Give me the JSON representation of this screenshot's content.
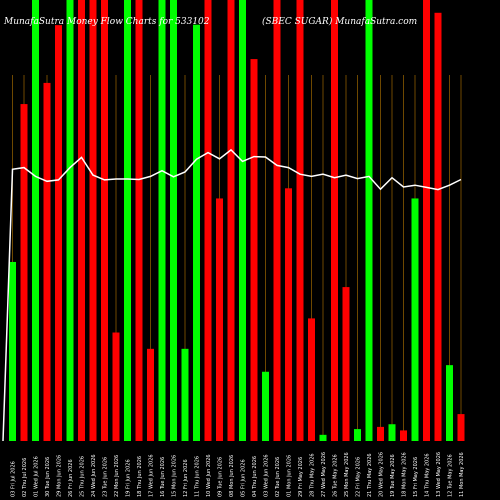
{
  "header": {
    "left": "MunafaSutra  Money Flow  Charts for 533102",
    "right": "(SBEC SUGAR)  MunafaSutra.com"
  },
  "colors": {
    "background": "#000000",
    "up": "#00ff00",
    "down": "#ff0000",
    "line": "#ffffff",
    "grid": "#8b5a00"
  },
  "chart_data": {
    "type": "bar",
    "title": "MunafaSutra  Money Flow  Charts for 533102",
    "subtitle": "(SBEC SUGAR)  MunafaSutra.com",
    "grid": "vertical",
    "ylim": [
      0,
      100
    ],
    "categories": [
      "03 Fri Jul 2026",
      "02 Thu Jul 2026",
      "01 Wed Jul 2026",
      "30 Tue Jun 2026",
      "29 Mon Jun 2026",
      "26 Fri Jun 2026",
      "25 Thu Jun 2026",
      "24 Wed Jun 2026",
      "23 Tue Jun 2026",
      "22 Mon Jun 2026",
      "19 Fri Jun 2026",
      "18 Thu Jun 2026",
      "17 Wed Jun 2026",
      "16 Tue Jun 2026",
      "15 Mon Jun 2026",
      "12 Fri Jun 2026",
      "11 Thu Jun 2026",
      "10 Wed Jun 2026",
      "09 Tue Jun 2026",
      "08 Mon Jun 2026",
      "05 Fri Jun 2026",
      "04 Thu Jun 2026",
      "03 Wed Jun 2026",
      "02 Tue Jun 2026",
      "01 Mon Jun 2026",
      "29 Fri May 2026",
      "28 Thu May 2026",
      "27 Wed May 2026",
      "26 Tue May 2026",
      "25 Mon May 2026",
      "22 Fri May 2026",
      "21 Thu May 2026",
      "20 Wed May 2026",
      "19 Tue May 2026",
      "18 Mon May 2026",
      "15 Fri May 2026",
      "14 Thu May 2026",
      "13 Wed May 2026",
      "12 Tue May 2026",
      "11 Mon May 2026"
    ],
    "series": [
      {
        "values": [
          40.6,
          76.4,
          100,
          81.2,
          94.3,
          100,
          100,
          100,
          100,
          24.6,
          100,
          100,
          20.9,
          100,
          100,
          20.9,
          94.4,
          100,
          55.0,
          100,
          100,
          86.6,
          15.7,
          100,
          57.3,
          100,
          27.8,
          1.4,
          100,
          34.9,
          2.7,
          100,
          3.2,
          3.8,
          2.4,
          55.0,
          100,
          97.1,
          17.2,
          6.1
        ],
        "directions": [
          "up",
          "down",
          "up",
          "down",
          "down",
          "up",
          "down",
          "down",
          "down",
          "down",
          "up",
          "down",
          "down",
          "up",
          "up",
          "up",
          "up",
          "down",
          "down",
          "down",
          "up",
          "down",
          "up",
          "down",
          "down",
          "down",
          "down",
          "up",
          "down",
          "down",
          "up",
          "up",
          "down",
          "up",
          "down",
          "up",
          "down",
          "down",
          "up",
          "down"
        ]
      },
      {
        "type": "line",
        "values": [
          61.6,
          62.0,
          60.0,
          58.9,
          59.2,
          62.0,
          64.3,
          60.3,
          59.2,
          59.4,
          59.4,
          59.3,
          60.0,
          61.3,
          59.9,
          61.0,
          63.9,
          65.4,
          64.0,
          66.0,
          63.4,
          64.5,
          64.4,
          62.5,
          62.0,
          60.5,
          60.0,
          60.5,
          59.7,
          60.3,
          59.5,
          60.0,
          57.1,
          59.7,
          57.6,
          58.0,
          57.5,
          57.0,
          58.0,
          59.3
        ]
      }
    ]
  }
}
